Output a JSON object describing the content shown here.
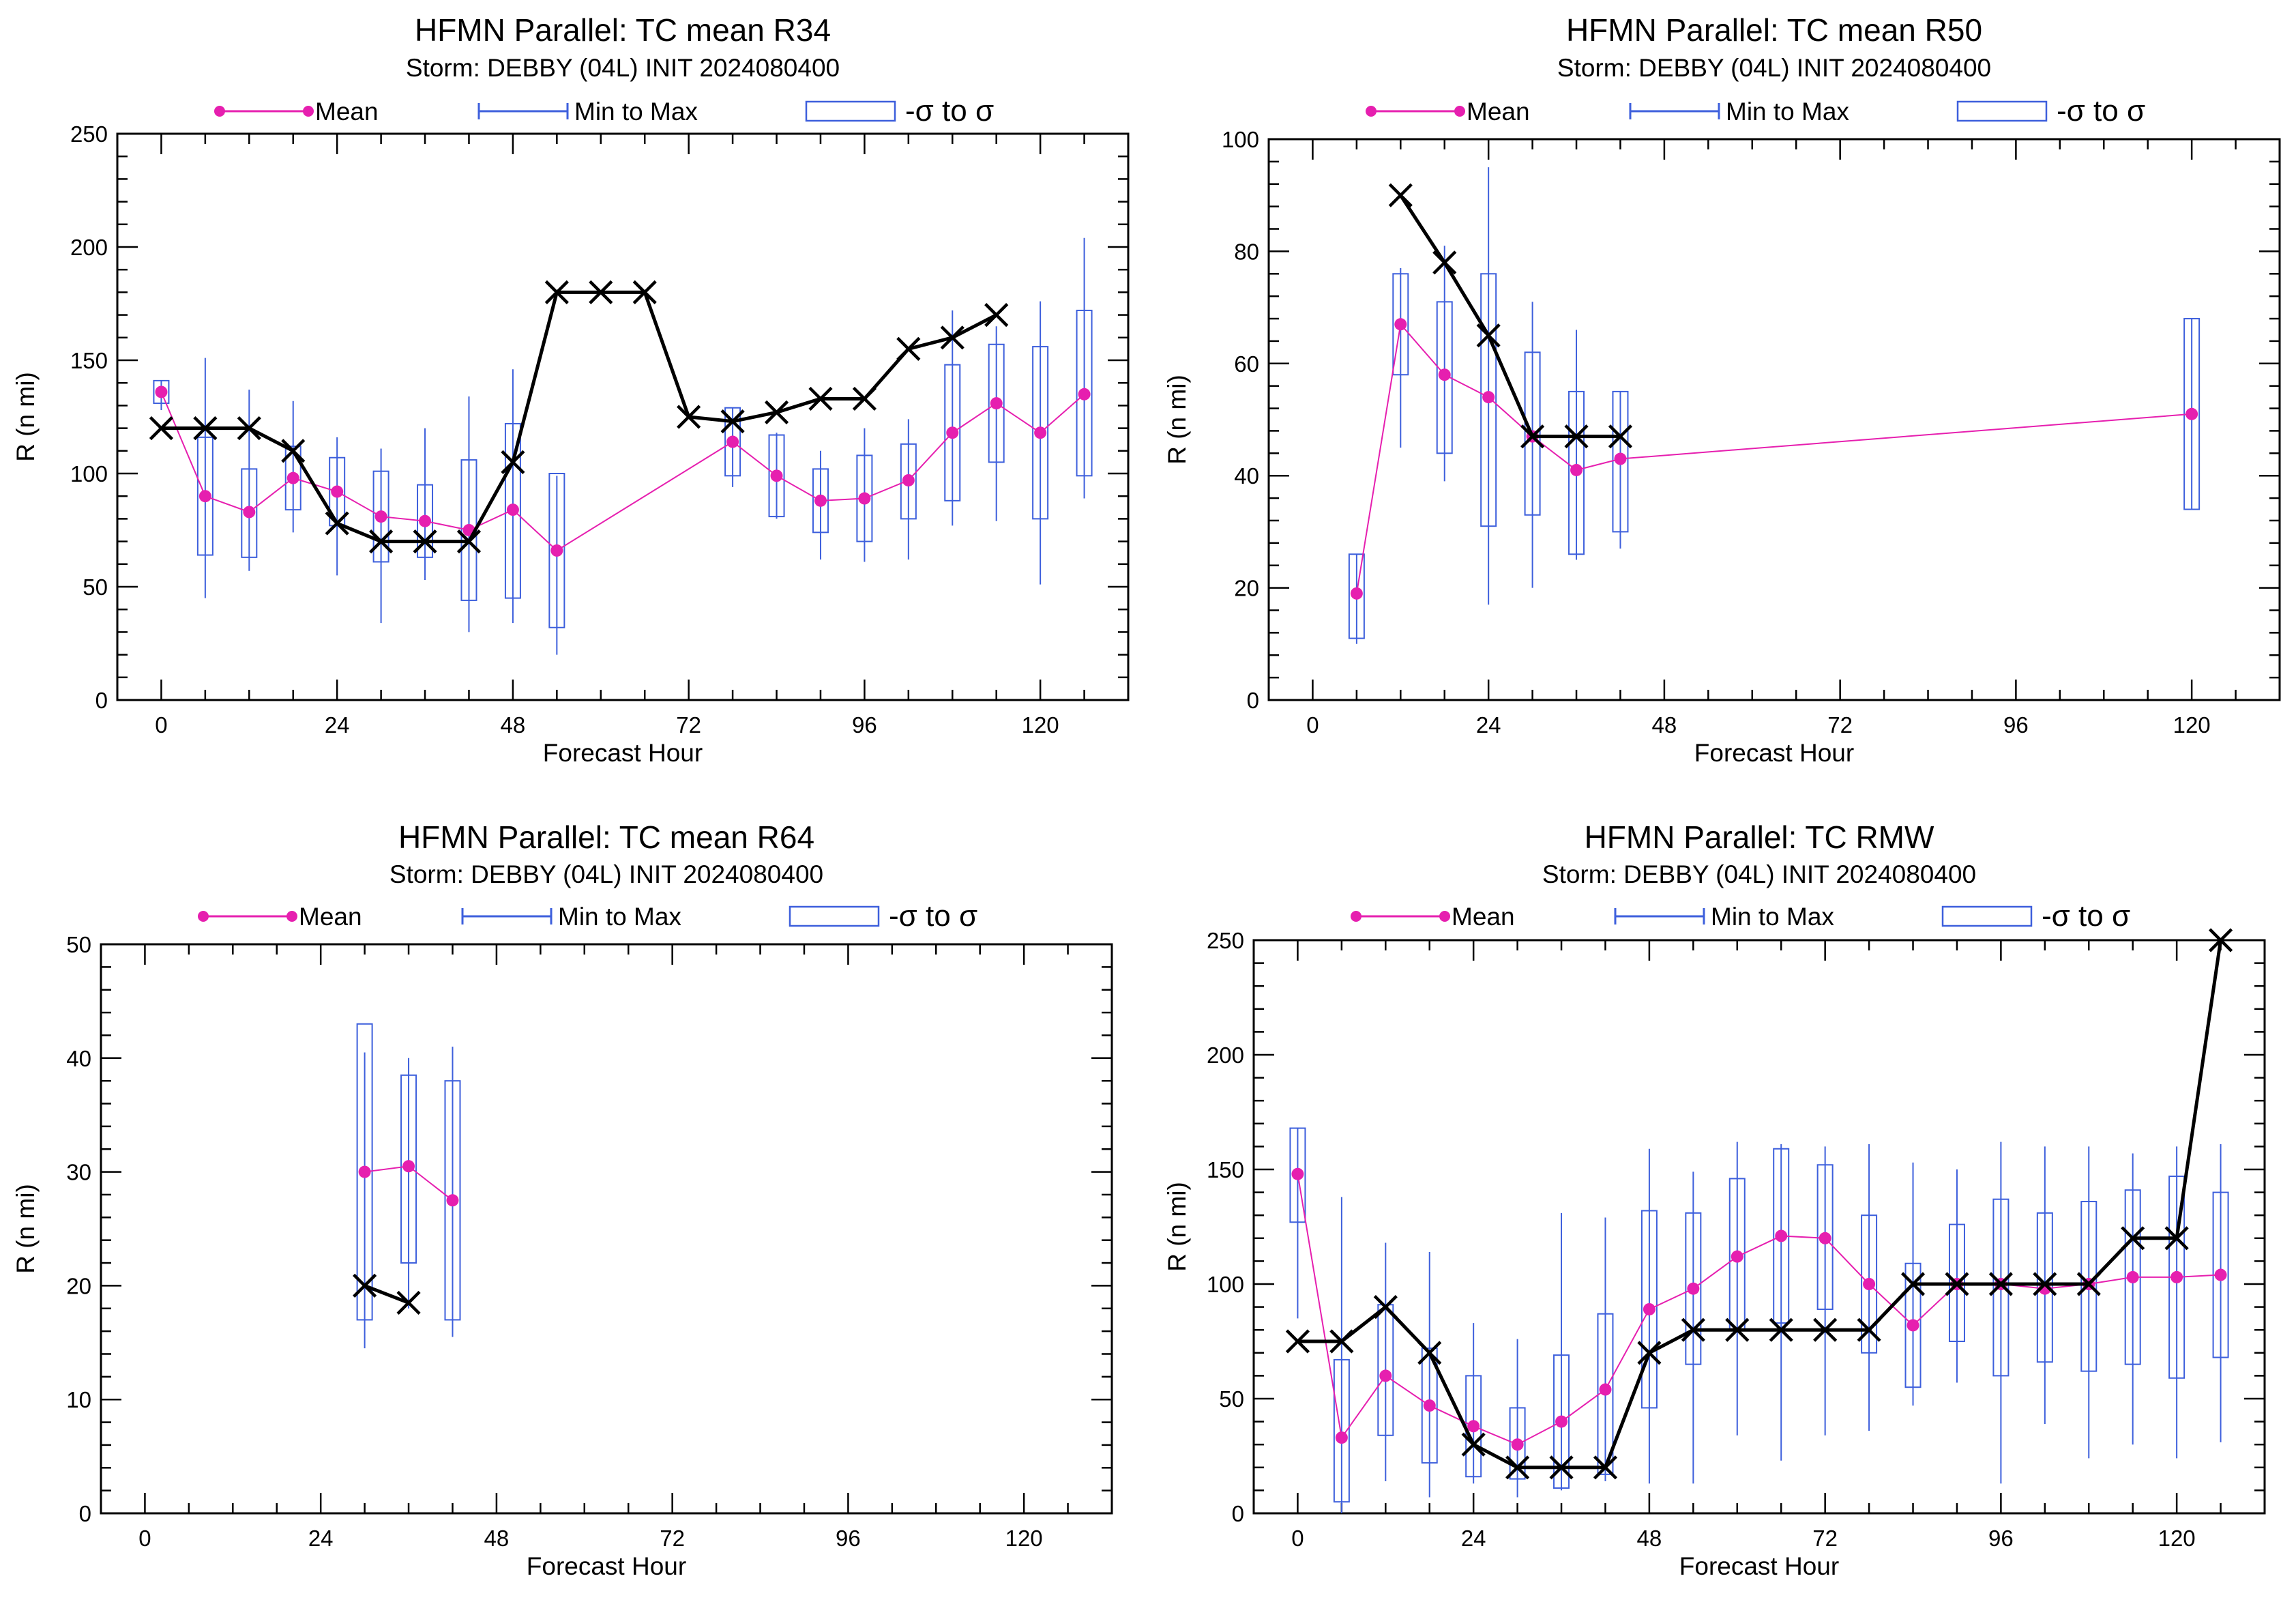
{
  "colors": {
    "mean": "#e61faf",
    "range": "#3d5fdc",
    "best_track": "#000000",
    "background": "#ffffff"
  },
  "legend": {
    "mean_label": "Mean",
    "range_label": "Min to Max",
    "sigma_label": "-σ to σ"
  },
  "chart_data": [
    {
      "type": "box",
      "title": "HFMN Parallel: TC mean R34",
      "subtitle": "Storm: DEBBY (04L) INIT 2024080400",
      "xlabel": "Forecast Hour",
      "ylabel": "R (n mi)",
      "xlim": [
        -6,
        132
      ],
      "ylim": [
        0,
        250
      ],
      "xticks": [
        0,
        24,
        48,
        72,
        96,
        120
      ],
      "yticks": [
        0,
        50,
        100,
        150,
        200,
        250
      ],
      "stats": [
        {
          "x": 0,
          "mean": 136,
          "min": 128,
          "max": 141,
          "sig_lo": 131,
          "sig_hi": 141
        },
        {
          "x": 6,
          "mean": 90,
          "min": 45,
          "max": 151,
          "sig_lo": 64,
          "sig_hi": 116
        },
        {
          "x": 12,
          "mean": 83,
          "min": 57,
          "max": 137,
          "sig_lo": 63,
          "sig_hi": 102
        },
        {
          "x": 18,
          "mean": 98,
          "min": 74,
          "max": 132,
          "sig_lo": 84,
          "sig_hi": 112
        },
        {
          "x": 24,
          "mean": 92,
          "min": 55,
          "max": 116,
          "sig_lo": 77,
          "sig_hi": 107
        },
        {
          "x": 30,
          "mean": 81,
          "min": 34,
          "max": 111,
          "sig_lo": 61,
          "sig_hi": 101
        },
        {
          "x": 36,
          "mean": 79,
          "min": 53,
          "max": 120,
          "sig_lo": 63,
          "sig_hi": 95
        },
        {
          "x": 42,
          "mean": 75,
          "min": 30,
          "max": 134,
          "sig_lo": 44,
          "sig_hi": 106
        },
        {
          "x": 48,
          "mean": 84,
          "min": 34,
          "max": 146,
          "sig_lo": 45,
          "sig_hi": 122
        },
        {
          "x": 54,
          "mean": 66,
          "min": 20,
          "max": 99,
          "sig_lo": 32,
          "sig_hi": 100
        },
        {
          "x": 78,
          "mean": 114,
          "min": 94,
          "max": 129,
          "sig_lo": 99,
          "sig_hi": 129
        },
        {
          "x": 84,
          "mean": 99,
          "min": 80,
          "max": 118,
          "sig_lo": 81,
          "sig_hi": 117
        },
        {
          "x": 90,
          "mean": 88,
          "min": 62,
          "max": 110,
          "sig_lo": 74,
          "sig_hi": 102
        },
        {
          "x": 96,
          "mean": 89,
          "min": 61,
          "max": 120,
          "sig_lo": 70,
          "sig_hi": 108
        },
        {
          "x": 102,
          "mean": 97,
          "min": 62,
          "max": 124,
          "sig_lo": 80,
          "sig_hi": 113
        },
        {
          "x": 108,
          "mean": 118,
          "min": 77,
          "max": 172,
          "sig_lo": 88,
          "sig_hi": 148
        },
        {
          "x": 114,
          "mean": 131,
          "min": 79,
          "max": 165,
          "sig_lo": 105,
          "sig_hi": 157
        },
        {
          "x": 120,
          "mean": 118,
          "min": 51,
          "max": 176,
          "sig_lo": 80,
          "sig_hi": 156
        },
        {
          "x": 126,
          "mean": 135,
          "min": 89,
          "max": 204,
          "sig_lo": 99,
          "sig_hi": 172
        }
      ],
      "best_track": [
        {
          "x": 0,
          "y": 120
        },
        {
          "x": 6,
          "y": 120
        },
        {
          "x": 12,
          "y": 120
        },
        {
          "x": 18,
          "y": 110
        },
        {
          "x": 24,
          "y": 78
        },
        {
          "x": 30,
          "y": 70
        },
        {
          "x": 36,
          "y": 70
        },
        {
          "x": 42,
          "y": 70
        },
        {
          "x": 48,
          "y": 105
        },
        {
          "x": 54,
          "y": 180
        },
        {
          "x": 60,
          "y": 180
        },
        {
          "x": 66,
          "y": 180
        },
        {
          "x": 72,
          "y": 125
        },
        {
          "x": 78,
          "y": 123
        },
        {
          "x": 84,
          "y": 127
        },
        {
          "x": 90,
          "y": 133
        },
        {
          "x": 96,
          "y": 133
        },
        {
          "x": 102,
          "y": 155
        },
        {
          "x": 108,
          "y": 160
        },
        {
          "x": 114,
          "y": 170
        }
      ]
    },
    {
      "type": "box",
      "title": "HFMN Parallel: TC mean R50",
      "subtitle": "Storm: DEBBY (04L) INIT 2024080400",
      "xlabel": "Forecast Hour",
      "ylabel": "R (n mi)",
      "xlim": [
        -6,
        132
      ],
      "ylim": [
        0,
        100
      ],
      "xticks": [
        0,
        24,
        48,
        72,
        96,
        120
      ],
      "yticks": [
        0,
        20,
        40,
        60,
        80,
        100
      ],
      "stats": [
        {
          "x": 6,
          "mean": 19,
          "min": 10,
          "max": 26,
          "sig_lo": 11,
          "sig_hi": 26
        },
        {
          "x": 12,
          "mean": 67,
          "min": 45,
          "max": 77,
          "sig_lo": 58,
          "sig_hi": 76
        },
        {
          "x": 18,
          "mean": 58,
          "min": 39,
          "max": 81,
          "sig_lo": 44,
          "sig_hi": 71
        },
        {
          "x": 24,
          "mean": 54,
          "min": 17,
          "max": 95,
          "sig_lo": 31,
          "sig_hi": 76
        },
        {
          "x": 30,
          "mean": 47,
          "min": 20,
          "max": 71,
          "sig_lo": 33,
          "sig_hi": 62
        },
        {
          "x": 36,
          "mean": 41,
          "min": 25,
          "max": 66,
          "sig_lo": 26,
          "sig_hi": 55
        },
        {
          "x": 42,
          "mean": 43,
          "min": 27,
          "max": 55,
          "sig_lo": 30,
          "sig_hi": 55
        },
        {
          "x": 120,
          "mean": 51,
          "min": 34,
          "max": 68,
          "sig_lo": 34,
          "sig_hi": 68
        }
      ],
      "best_track": [
        {
          "x": 12,
          "y": 90
        },
        {
          "x": 18,
          "y": 78
        },
        {
          "x": 24,
          "y": 65
        },
        {
          "x": 30,
          "y": 47
        },
        {
          "x": 36,
          "y": 47
        },
        {
          "x": 42,
          "y": 47
        }
      ]
    },
    {
      "type": "box",
      "title": "HFMN Parallel: TC mean R64",
      "subtitle": "Storm: DEBBY (04L) INIT 2024080400",
      "xlabel": "Forecast Hour",
      "ylabel": "R (n mi)",
      "xlim": [
        -6,
        132
      ],
      "ylim": [
        0,
        50
      ],
      "xticks": [
        0,
        24,
        48,
        72,
        96,
        120
      ],
      "yticks": [
        0,
        10,
        20,
        30,
        40,
        50
      ],
      "stats": [
        {
          "x": 30,
          "mean": 30,
          "min": 14.5,
          "max": 40.5,
          "sig_lo": 17,
          "sig_hi": 43
        },
        {
          "x": 36,
          "mean": 30.5,
          "min": 18,
          "max": 40,
          "sig_lo": 22,
          "sig_hi": 38.5
        },
        {
          "x": 42,
          "mean": 27.5,
          "min": 15.5,
          "max": 41,
          "sig_lo": 17,
          "sig_hi": 38
        }
      ],
      "best_track": [
        {
          "x": 30,
          "y": 20
        },
        {
          "x": 36,
          "y": 18.5
        }
      ]
    },
    {
      "type": "box",
      "title": "HFMN Parallel: TC RMW",
      "subtitle": "Storm: DEBBY (04L) INIT 2024080400",
      "xlabel": "Forecast Hour",
      "ylabel": "R (n mi)",
      "xlim": [
        -6,
        132
      ],
      "ylim": [
        0,
        250
      ],
      "xticks": [
        0,
        24,
        48,
        72,
        96,
        120
      ],
      "yticks": [
        0,
        50,
        100,
        150,
        200,
        250
      ],
      "stats": [
        {
          "x": 0,
          "mean": 148,
          "min": 85,
          "max": 168,
          "sig_lo": 127,
          "sig_hi": 168
        },
        {
          "x": 6,
          "mean": 33,
          "min": 0,
          "max": 138,
          "sig_lo": 5,
          "sig_hi": 67
        },
        {
          "x": 12,
          "mean": 60,
          "min": 14,
          "max": 118,
          "sig_lo": 34,
          "sig_hi": 91
        },
        {
          "x": 18,
          "mean": 47,
          "min": 7,
          "max": 114,
          "sig_lo": 22,
          "sig_hi": 72
        },
        {
          "x": 24,
          "mean": 38,
          "min": 13,
          "max": 83,
          "sig_lo": 16,
          "sig_hi": 60
        },
        {
          "x": 30,
          "mean": 30,
          "min": 7,
          "max": 76,
          "sig_lo": 15,
          "sig_hi": 46
        },
        {
          "x": 36,
          "mean": 40,
          "min": 10,
          "max": 131,
          "sig_lo": 11,
          "sig_hi": 69
        },
        {
          "x": 42,
          "mean": 54,
          "min": 14,
          "max": 129,
          "sig_lo": 17,
          "sig_hi": 87
        },
        {
          "x": 48,
          "mean": 89,
          "min": 13,
          "max": 159,
          "sig_lo": 46,
          "sig_hi": 132
        },
        {
          "x": 54,
          "mean": 98,
          "min": 13,
          "max": 149,
          "sig_lo": 65,
          "sig_hi": 131
        },
        {
          "x": 60,
          "mean": 112,
          "min": 34,
          "max": 162,
          "sig_lo": 80,
          "sig_hi": 146
        },
        {
          "x": 66,
          "mean": 121,
          "min": 23,
          "max": 161,
          "sig_lo": 83,
          "sig_hi": 159
        },
        {
          "x": 72,
          "mean": 120,
          "min": 34,
          "max": 160,
          "sig_lo": 89,
          "sig_hi": 152
        },
        {
          "x": 78,
          "mean": 100,
          "min": 36,
          "max": 161,
          "sig_lo": 70,
          "sig_hi": 130
        },
        {
          "x": 84,
          "mean": 82,
          "min": 47,
          "max": 153,
          "sig_lo": 55,
          "sig_hi": 109
        },
        {
          "x": 90,
          "mean": 100,
          "min": 57,
          "max": 150,
          "sig_lo": 75,
          "sig_hi": 126
        },
        {
          "x": 96,
          "mean": 100,
          "min": 13,
          "max": 162,
          "sig_lo": 60,
          "sig_hi": 137
        },
        {
          "x": 102,
          "mean": 98,
          "min": 39,
          "max": 160,
          "sig_lo": 66,
          "sig_hi": 131
        },
        {
          "x": 108,
          "mean": 100,
          "min": 24,
          "max": 160,
          "sig_lo": 62,
          "sig_hi": 136
        },
        {
          "x": 114,
          "mean": 103,
          "min": 30,
          "max": 157,
          "sig_lo": 65,
          "sig_hi": 141
        },
        {
          "x": 120,
          "mean": 103,
          "min": 24,
          "max": 160,
          "sig_lo": 59,
          "sig_hi": 147
        },
        {
          "x": 126,
          "mean": 104,
          "min": 31,
          "max": 161,
          "sig_lo": 68,
          "sig_hi": 140
        }
      ],
      "best_track": [
        {
          "x": 0,
          "y": 75
        },
        {
          "x": 6,
          "y": 75
        },
        {
          "x": 12,
          "y": 90
        },
        {
          "x": 18,
          "y": 70
        },
        {
          "x": 24,
          "y": 30
        },
        {
          "x": 30,
          "y": 20
        },
        {
          "x": 36,
          "y": 20
        },
        {
          "x": 42,
          "y": 20
        },
        {
          "x": 48,
          "y": 70
        },
        {
          "x": 54,
          "y": 80
        },
        {
          "x": 60,
          "y": 80
        },
        {
          "x": 66,
          "y": 80
        },
        {
          "x": 72,
          "y": 80
        },
        {
          "x": 78,
          "y": 80
        },
        {
          "x": 84,
          "y": 100
        },
        {
          "x": 90,
          "y": 100
        },
        {
          "x": 96,
          "y": 100
        },
        {
          "x": 102,
          "y": 100
        },
        {
          "x": 108,
          "y": 100
        },
        {
          "x": 114,
          "y": 120
        },
        {
          "x": 120,
          "y": 120
        },
        {
          "x": 126,
          "y": 250
        }
      ]
    }
  ]
}
